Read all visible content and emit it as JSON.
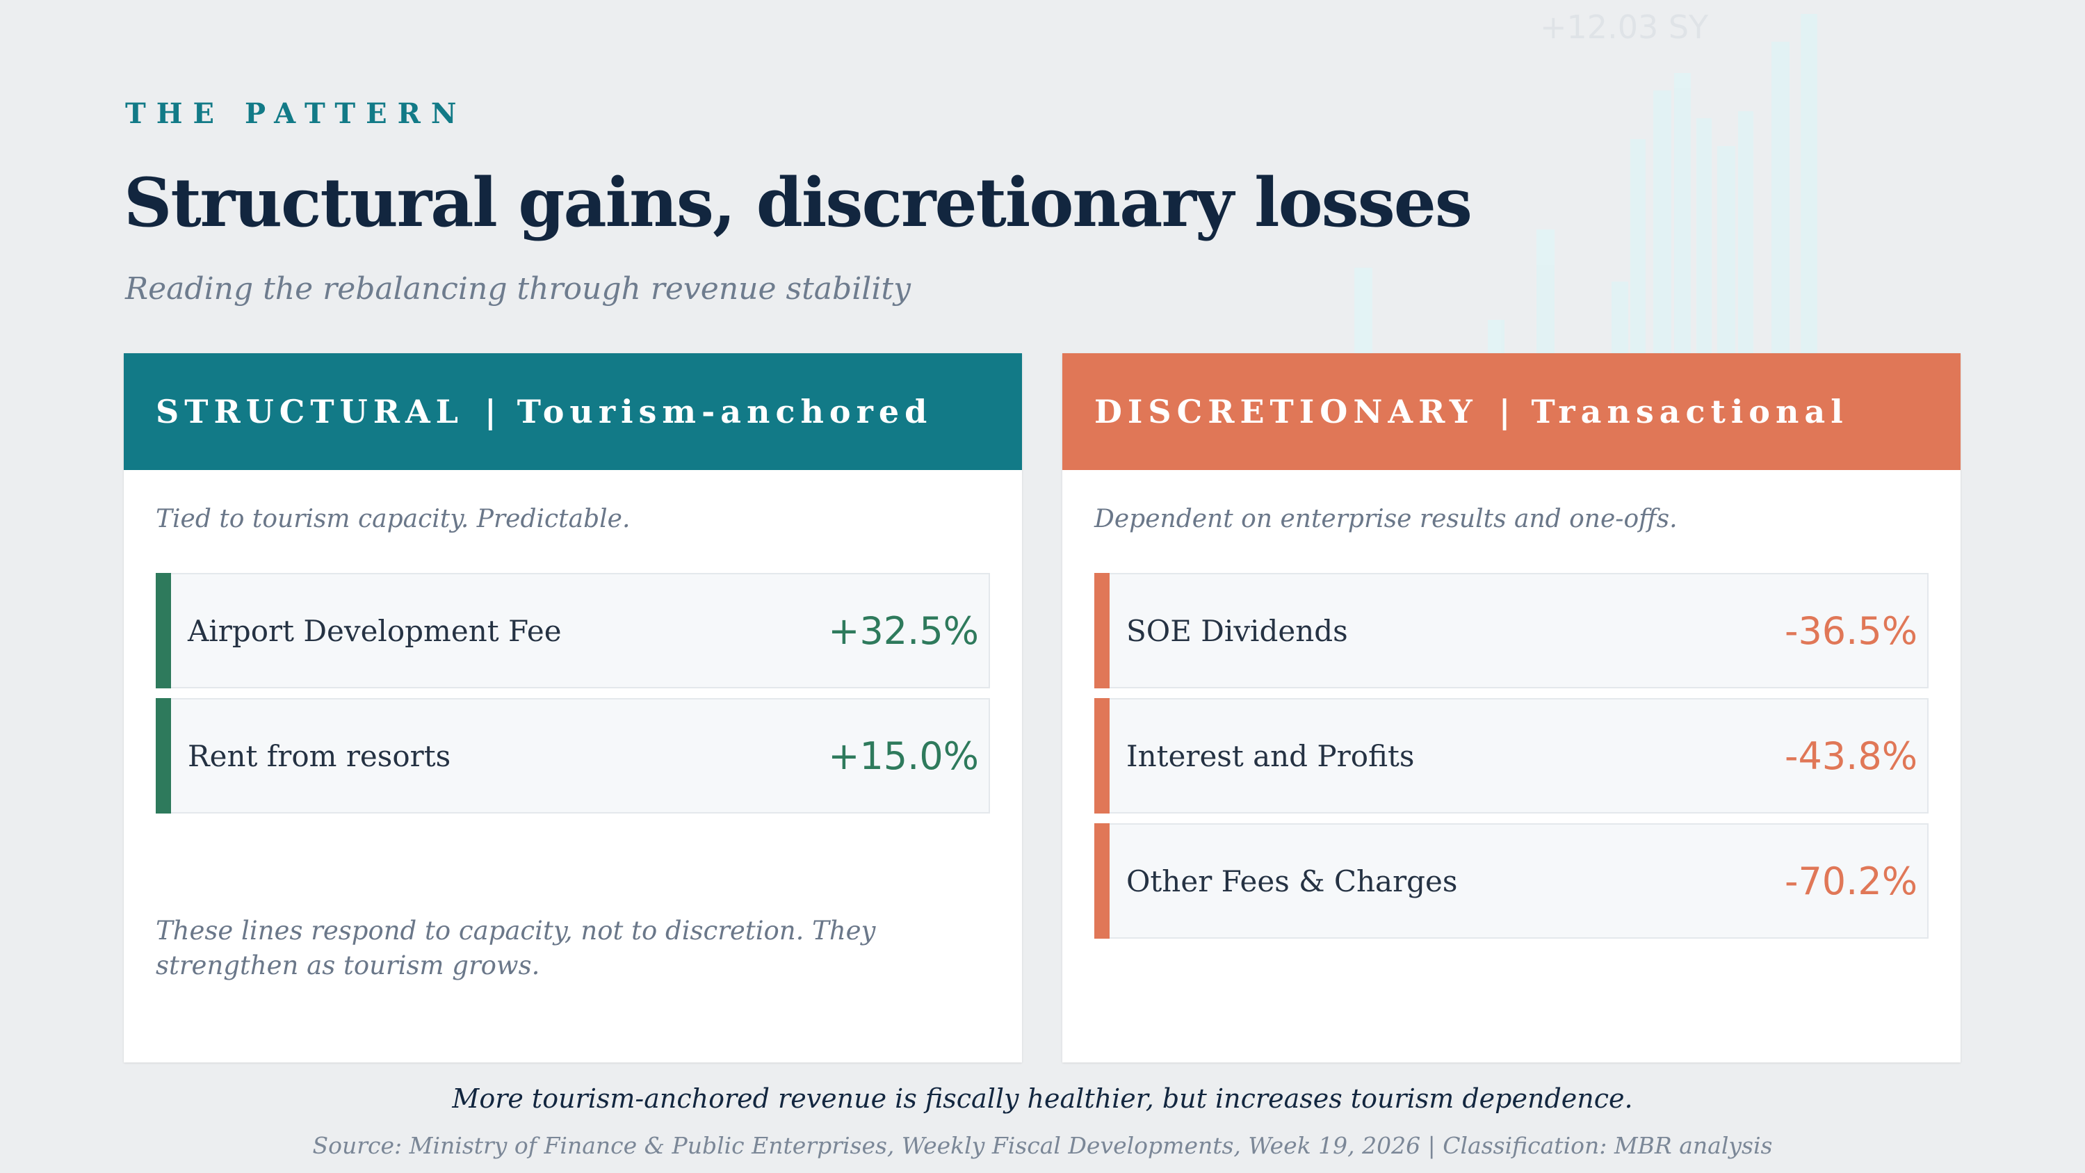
{
  "header": {
    "eyebrow": "THE PATTERN",
    "title": "Structural gains, discretionary losses",
    "subtitle": "Reading the rebalancing through revenue stability"
  },
  "colors": {
    "structural_accent": "#127a87",
    "discretionary_accent": "#e07757",
    "positive": "#2e7a5c",
    "negative": "#e07757",
    "title": "#12263f"
  },
  "structural": {
    "label": "STRUCTURAL",
    "separator": "|",
    "sublabel": "Tourism-anchored",
    "description": "Tied to tourism capacity. Predictable.",
    "items": [
      {
        "label": "Airport Development Fee",
        "value": "+32.5%"
      },
      {
        "label": "Rent from resorts",
        "value": "+15.0%"
      }
    ],
    "note": "These lines respond to capacity, not to discretion. They strengthen as tourism grows."
  },
  "discretionary": {
    "label": "DISCRETIONARY",
    "separator": "|",
    "sublabel": "Transactional",
    "description": "Dependent on enterprise results and one-offs.",
    "items": [
      {
        "label": "SOE Dividends",
        "value": "-36.5%"
      },
      {
        "label": "Interest and Profits",
        "value": "-43.8%"
      },
      {
        "label": "Other Fees & Charges",
        "value": "-70.2%"
      }
    ]
  },
  "footer": {
    "takeaway": "More tourism-anchored revenue is fiscally healthier, but increases tourism dependence.",
    "source": "Source: Ministry of Finance & Public Enterprises, Weekly Fiscal Developments, Week 19, 2026  |  Classification: MBR analysis"
  }
}
